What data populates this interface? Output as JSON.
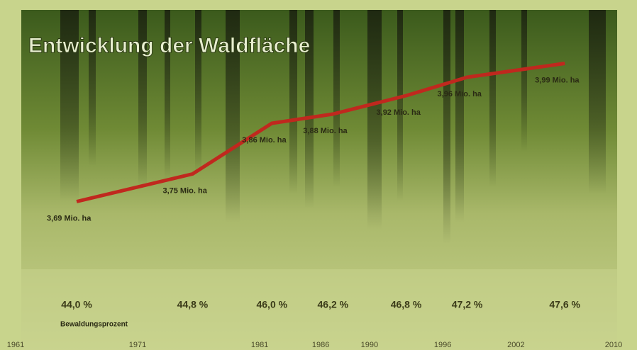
{
  "chart_data": {
    "type": "line",
    "title": "Entwicklung der Waldfläche",
    "x": [
      1966,
      1975.5,
      1982,
      1987,
      1993,
      1998,
      2006
    ],
    "xlim": [
      1961,
      2010
    ],
    "xticks": [
      1961,
      1971,
      1981,
      1986,
      1990,
      1996,
      2002,
      2010
    ],
    "ylim": [
      3.6,
      4.0
    ],
    "series": [
      {
        "color": "#c0281e",
        "values": [
          3.69,
          3.75,
          3.86,
          3.88,
          3.92,
          3.96,
          3.99
        ],
        "value_labels": [
          "3,69 Mio. ha",
          "3,75 Mio. ha",
          "3,86 Mio. ha",
          "3,88 Mio. ha",
          "3,92 Mio. ha",
          "3,96 Mio. ha",
          "3,99 Mio. ha"
        ]
      }
    ],
    "percent": {
      "name": "Bewaldungsprozent",
      "values": [
        44.0,
        44.8,
        46.0,
        46.2,
        46.8,
        47.2,
        47.6
      ],
      "value_labels": [
        "44,0 %",
        "44,8 %",
        "46,0 %",
        "46,2 %",
        "46,8 %",
        "47,2 %",
        "47,6 %"
      ]
    }
  }
}
